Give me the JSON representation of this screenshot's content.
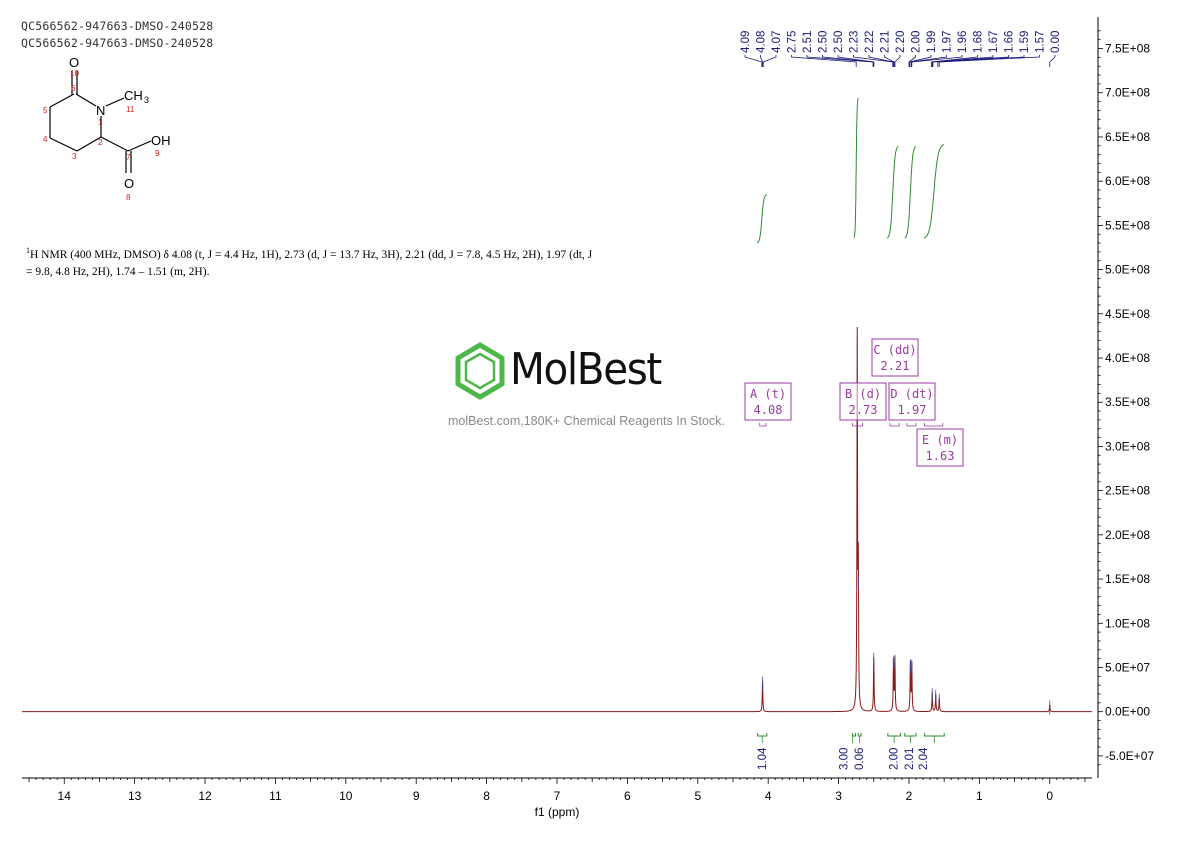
{
  "header": {
    "line1": "QC566562-947663-DMSO-240528",
    "line2": "QC566562-947663-DMSO-240528"
  },
  "description": {
    "sup": "1",
    "text": "H NMR (400 MHz, DMSO) δ 4.08 (t, J = 4.4 Hz, 1H), 2.73 (d, J = 13.7 Hz, 3H), 2.21 (dd, J = 7.8, 4.5 Hz, 2H), 1.97 (dt, J = 9.8, 4.8 Hz, 2H), 1.74 – 1.51 (m, 2H)."
  },
  "structure": {
    "atoms": [
      "O",
      "N",
      "CH",
      "3",
      "OH",
      "O"
    ],
    "numbers": [
      "10",
      "6",
      "5",
      "1",
      "11",
      "4",
      "2",
      "7",
      "9",
      "3",
      "8"
    ]
  },
  "watermark": {
    "brand": "MolBest",
    "url": "molBest.com,180K+ Chemical Reagents In Stock."
  },
  "colors": {
    "spectrum": "#8b1a1a",
    "peak_labels": "#1a1a7a",
    "integration": "#2e8b2e",
    "multiplet_box": "#9b3aa0",
    "brand_green": "#4cb848"
  },
  "chart_data": {
    "type": "line",
    "xlabel": "f1 (ppm)",
    "xlim": [
      14.6,
      -0.6
    ],
    "x_reversed": true,
    "ylim": [
      -75000000,
      780000000
    ],
    "x_ticks": [
      "14",
      "13",
      "12",
      "11",
      "10",
      "9",
      "8",
      "7",
      "6",
      "5",
      "4",
      "3",
      "2",
      "1",
      "0"
    ],
    "y_ticks": [
      "-5.0E+07",
      "0.0E+00",
      "5.0E+07",
      "1.0E+08",
      "1.5E+08",
      "2.0E+08",
      "2.5E+08",
      "3.0E+08",
      "3.5E+08",
      "4.0E+08",
      "4.5E+08",
      "5.0E+08",
      "5.5E+08",
      "6.0E+08",
      "6.5E+08",
      "7.0E+08",
      "7.5E+08"
    ],
    "y_tick_values": [
      -50000000,
      0,
      50000000,
      100000000,
      150000000,
      200000000,
      250000000,
      300000000,
      350000000,
      400000000,
      450000000,
      500000000,
      550000000,
      600000000,
      650000000,
      700000000,
      750000000
    ],
    "peaks": [
      {
        "ppm": 4.08,
        "height": 35000000
      },
      {
        "ppm": 2.735,
        "height": 420000000
      },
      {
        "ppm": 2.72,
        "height": 150000000
      },
      {
        "ppm": 2.5,
        "height": 62000000
      },
      {
        "ppm": 2.22,
        "height": 58000000
      },
      {
        "ppm": 2.2,
        "height": 60000000
      },
      {
        "ppm": 1.98,
        "height": 55000000
      },
      {
        "ppm": 1.96,
        "height": 54000000
      },
      {
        "ppm": 1.67,
        "height": 22000000
      },
      {
        "ppm": 1.62,
        "height": 20000000
      },
      {
        "ppm": 1.57,
        "height": 16000000
      },
      {
        "ppm": 0.0,
        "height": 8000000
      }
    ],
    "peak_labels": [
      "4.09",
      "4.08",
      "4.07",
      "2.75",
      "2.51",
      "2.50",
      "2.50",
      "2.23",
      "2.22",
      "2.21",
      "2.20",
      "2.00",
      "1.99",
      "1.97",
      "1.96",
      "1.68",
      "1.67",
      "1.66",
      "1.59",
      "1.57",
      "0.00"
    ],
    "peak_label_ppm": [
      4.09,
      4.08,
      4.07,
      2.75,
      2.51,
      2.5,
      2.5,
      2.23,
      2.22,
      2.21,
      2.2,
      2.0,
      1.99,
      1.97,
      1.96,
      1.68,
      1.67,
      1.66,
      1.59,
      1.57,
      0.0
    ],
    "integrals": [
      {
        "from": 4.15,
        "to": 4.02,
        "value": "1.04"
      },
      {
        "from": 2.8,
        "to": 2.76,
        "value": "3.00"
      },
      {
        "from": 2.72,
        "to": 2.68,
        "value": "0.06"
      },
      {
        "from": 2.3,
        "to": 2.12,
        "value": "2.00"
      },
      {
        "from": 2.06,
        "to": 1.9,
        "value": "2.01"
      },
      {
        "from": 1.78,
        "to": 1.5,
        "value": "2.04"
      }
    ],
    "multiplets": [
      {
        "letter": "A",
        "mult": "(t)",
        "shift": "4.08"
      },
      {
        "letter": "B",
        "mult": "(d)",
        "shift": "2.73"
      },
      {
        "letter": "C",
        "mult": "(dd)",
        "shift": "2.21"
      },
      {
        "letter": "D",
        "mult": "(dt)",
        "shift": "1.97"
      },
      {
        "letter": "E",
        "mult": "(m)",
        "shift": "1.63"
      }
    ]
  }
}
